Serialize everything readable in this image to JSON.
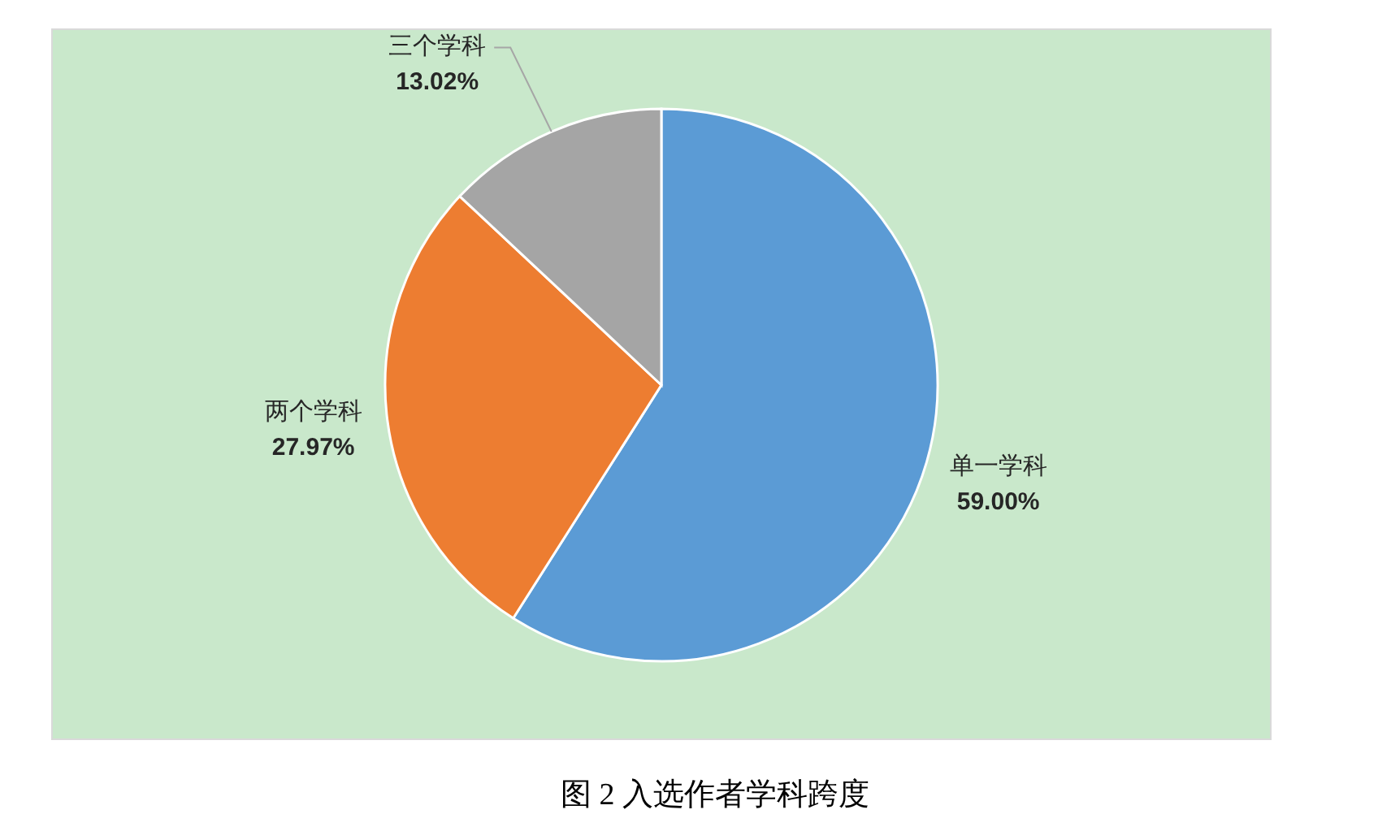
{
  "chart_data": {
    "type": "pie",
    "categories": [
      "单一学科",
      "两个学科",
      "三个学科"
    ],
    "values": [
      59.0,
      27.97,
      13.02
    ],
    "colors": [
      "#5b9bd5",
      "#ed7d31",
      "#a5a5a5"
    ],
    "value_labels": [
      "59.00%",
      "27.97%",
      "13.02%"
    ],
    "annotations": [
      "图 2 入选作者学科跨度"
    ]
  }
}
